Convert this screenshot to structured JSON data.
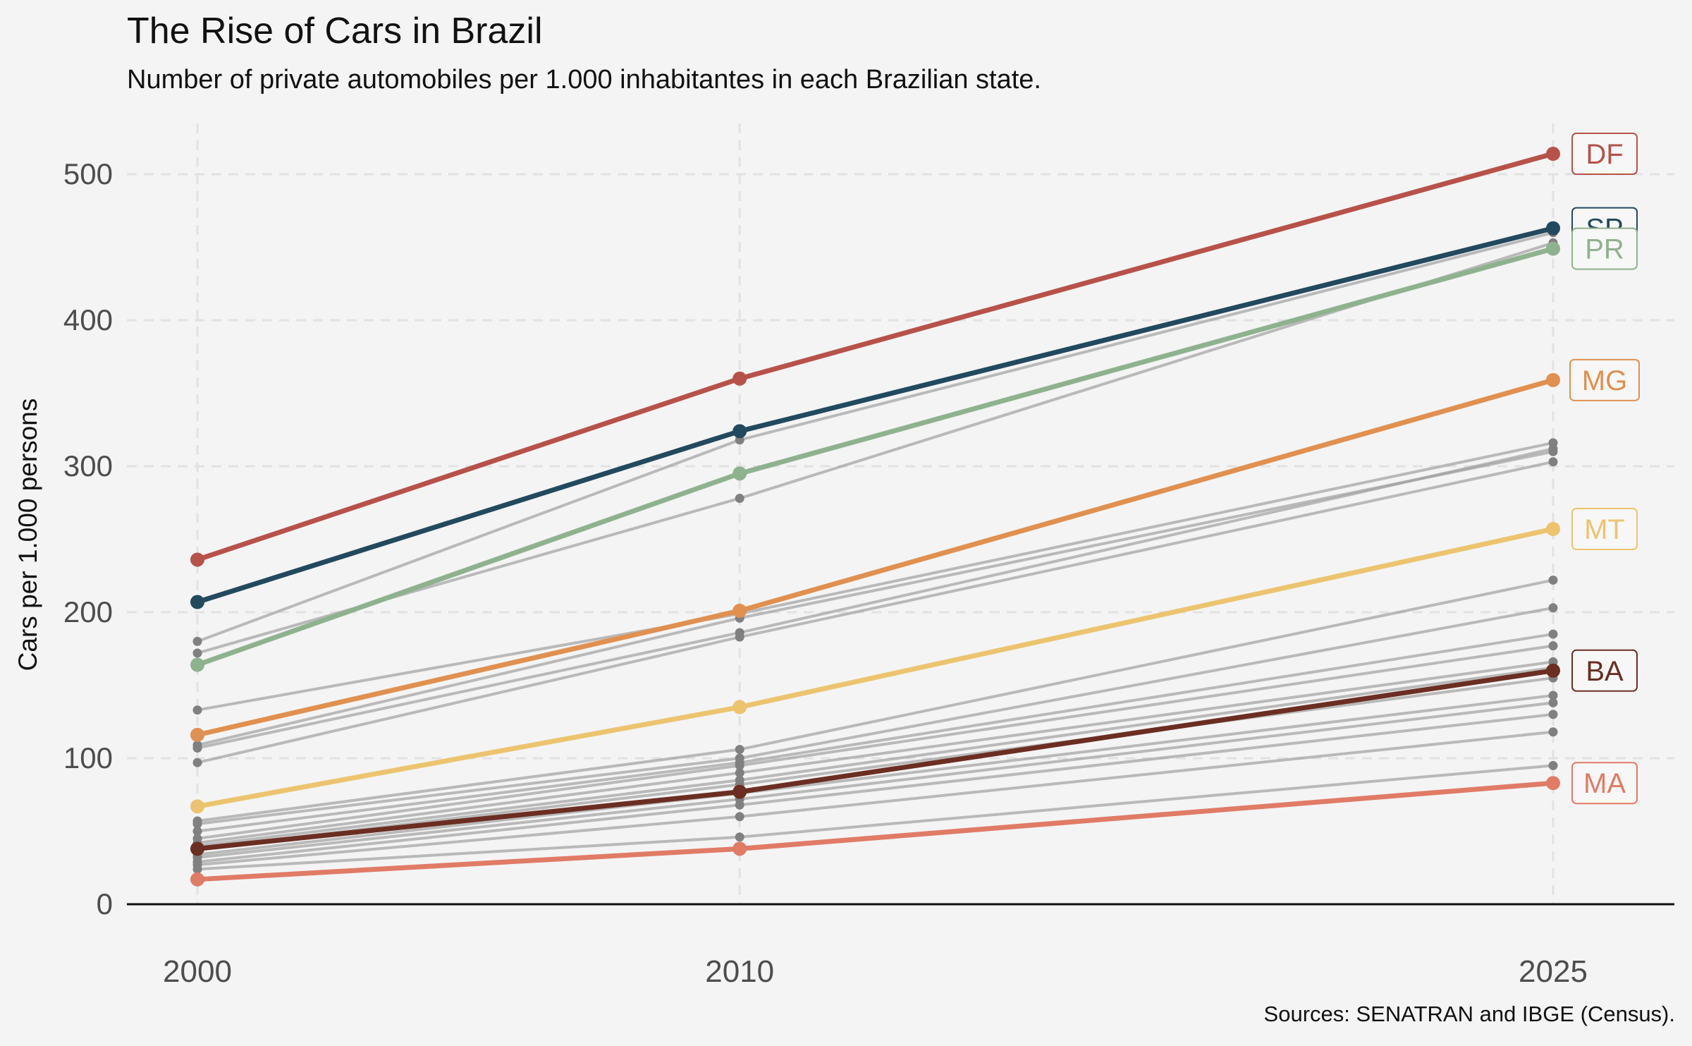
{
  "chart_data": {
    "type": "line",
    "title": "The Rise of Cars in Brazil",
    "subtitle": "Number of private automobiles per 1.000 inhabitantes in each Brazilian state.",
    "ylabel": "Cars per 1.000 persons",
    "xlabel": "",
    "caption": "Sources: SENATRAN and IBGE (Census).",
    "x": [
      "2000",
      "2010",
      "2025"
    ],
    "ylim": [
      0,
      530
    ],
    "yticks": [
      0,
      100,
      200,
      300,
      400,
      500
    ],
    "grid": true,
    "legend": "direct labels at right end of highlighted lines",
    "highlighted_series": [
      {
        "name": "DF",
        "color": "#b7524a",
        "values": [
          236,
          360,
          514
        ]
      },
      {
        "name": "SP",
        "color": "#23495e",
        "values": [
          207,
          324,
          463
        ]
      },
      {
        "name": "PR",
        "color": "#8fb28e",
        "values": [
          164,
          295,
          449
        ]
      },
      {
        "name": "MG",
        "color": "#e09050",
        "values": [
          116,
          201,
          359
        ]
      },
      {
        "name": "MT",
        "color": "#ecc470",
        "values": [
          67,
          135,
          257
        ]
      },
      {
        "name": "BA",
        "color": "#6b2e22",
        "values": [
          38,
          77,
          160
        ]
      },
      {
        "name": "MA",
        "color": "#e07b66",
        "values": [
          17,
          38,
          83
        ]
      }
    ],
    "other_series_color": "#a0a0a0",
    "other_series": [
      {
        "values": [
          180,
          318,
          460
        ]
      },
      {
        "values": [
          172,
          278,
          453
        ]
      },
      {
        "values": [
          133,
          199,
          316
        ]
      },
      {
        "values": [
          107,
          186,
          312
        ]
      },
      {
        "values": [
          109,
          196,
          310
        ]
      },
      {
        "values": [
          97,
          183,
          303
        ]
      },
      {
        "values": [
          57,
          106,
          222
        ]
      },
      {
        "values": [
          55,
          100,
          203
        ]
      },
      {
        "values": [
          50,
          97,
          185
        ]
      },
      {
        "values": [
          45,
          95,
          177
        ]
      },
      {
        "values": [
          42,
          90,
          166
        ]
      },
      {
        "values": [
          40,
          85,
          162
        ]
      },
      {
        "values": [
          38,
          82,
          155
        ]
      },
      {
        "values": [
          34,
          76,
          143
        ]
      },
      {
        "values": [
          32,
          72,
          138
        ]
      },
      {
        "values": [
          29,
          68,
          130
        ]
      },
      {
        "values": [
          27,
          60,
          118
        ]
      },
      {
        "values": [
          24,
          46,
          95
        ]
      }
    ]
  }
}
